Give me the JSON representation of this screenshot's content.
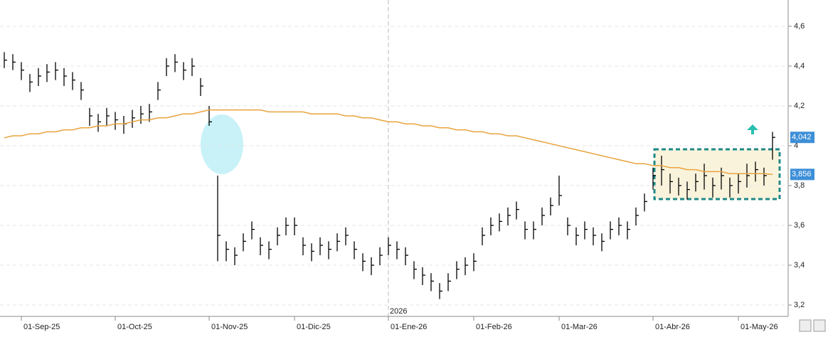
{
  "chart_data": {
    "type": "ohlc",
    "bar_color": "#000000",
    "categories": [
      null,
      null,
      "01-Sep-25",
      null,
      null,
      null,
      null,
      null,
      null,
      null,
      null,
      null,
      null,
      "01-Oct-25",
      null,
      null,
      null,
      null,
      null,
      null,
      null,
      null,
      null,
      null,
      "01-Nov-25",
      null,
      null,
      null,
      null,
      null,
      null,
      null,
      null,
      null,
      "01-Dic-25",
      null,
      null,
      null,
      null,
      null,
      null,
      null,
      null,
      null,
      null,
      "01-Ene-26",
      null,
      null,
      null,
      null,
      null,
      null,
      null,
      null,
      null,
      "01-Feb-26",
      null,
      null,
      null,
      null,
      null,
      null,
      null,
      null,
      null,
      "01-Mar-26",
      null,
      null,
      null,
      null,
      null,
      null,
      null,
      null,
      null,
      null,
      "01-Abr-26",
      null,
      null,
      null,
      null,
      null,
      null,
      null,
      null,
      null,
      "01-May-26",
      null,
      null,
      null,
      null
    ],
    "high": [
      4.47,
      4.46,
      4.42,
      4.36,
      4.39,
      4.41,
      4.42,
      4.39,
      4.37,
      4.32,
      4.19,
      4.16,
      4.19,
      4.17,
      4.15,
      4.18,
      4.2,
      4.21,
      4.32,
      4.44,
      4.46,
      4.42,
      4.44,
      4.34,
      4.2,
      3.85,
      3.52,
      3.49,
      3.56,
      3.62,
      3.54,
      3.52,
      3.59,
      3.64,
      3.64,
      3.54,
      3.51,
      3.54,
      3.52,
      3.56,
      3.59,
      3.52,
      3.46,
      3.44,
      3.49,
      3.54,
      3.52,
      3.49,
      3.42,
      3.39,
      3.36,
      3.31,
      3.36,
      3.42,
      3.44,
      3.46,
      3.59,
      3.64,
      3.66,
      3.69,
      3.72,
      3.62,
      3.62,
      3.69,
      3.74,
      3.85,
      3.64,
      3.59,
      3.62,
      3.59,
      3.56,
      3.62,
      3.64,
      3.62,
      3.69,
      3.76,
      3.89,
      3.95,
      3.86,
      3.84,
      3.82,
      3.86,
      3.91,
      3.84,
      3.89,
      3.84,
      3.86,
      3.91,
      3.92,
      3.89,
      4.07
    ],
    "low": [
      4.39,
      4.38,
      4.33,
      4.27,
      4.3,
      4.32,
      4.33,
      4.3,
      4.28,
      4.23,
      4.1,
      4.07,
      4.1,
      4.08,
      4.06,
      4.09,
      4.11,
      4.12,
      4.23,
      4.35,
      4.37,
      4.33,
      4.35,
      4.25,
      4.1,
      3.42,
      3.42,
      3.4,
      3.47,
      3.53,
      3.45,
      3.43,
      3.5,
      3.55,
      3.55,
      3.45,
      3.42,
      3.45,
      3.43,
      3.47,
      3.5,
      3.43,
      3.37,
      3.35,
      3.4,
      3.45,
      3.43,
      3.4,
      3.33,
      3.3,
      3.27,
      3.23,
      3.27,
      3.33,
      3.35,
      3.37,
      3.5,
      3.55,
      3.57,
      3.6,
      3.63,
      3.53,
      3.53,
      3.6,
      3.65,
      3.7,
      3.55,
      3.5,
      3.53,
      3.5,
      3.47,
      3.53,
      3.55,
      3.53,
      3.6,
      3.67,
      3.78,
      3.8,
      3.76,
      3.75,
      3.73,
      3.77,
      3.78,
      3.74,
      3.78,
      3.74,
      3.76,
      3.79,
      3.82,
      3.8,
      3.93
    ],
    "close": [
      4.43,
      4.42,
      4.38,
      4.32,
      4.35,
      4.37,
      4.38,
      4.35,
      4.33,
      4.28,
      4.15,
      4.12,
      4.15,
      4.13,
      4.11,
      4.14,
      4.16,
      4.17,
      4.28,
      4.4,
      4.42,
      4.38,
      4.4,
      4.3,
      4.12,
      3.55,
      3.48,
      3.45,
      3.52,
      3.58,
      3.5,
      3.48,
      3.55,
      3.6,
      3.6,
      3.5,
      3.47,
      3.5,
      3.48,
      3.52,
      3.55,
      3.48,
      3.42,
      3.4,
      3.45,
      3.5,
      3.48,
      3.45,
      3.38,
      3.35,
      3.32,
      3.27,
      3.32,
      3.38,
      3.4,
      3.42,
      3.55,
      3.6,
      3.62,
      3.65,
      3.68,
      3.58,
      3.58,
      3.65,
      3.7,
      3.75,
      3.6,
      3.55,
      3.58,
      3.55,
      3.52,
      3.58,
      3.6,
      3.58,
      3.65,
      3.72,
      3.85,
      3.88,
      3.82,
      3.8,
      3.78,
      3.82,
      3.85,
      3.8,
      3.85,
      3.8,
      3.82,
      3.85,
      3.88,
      3.85,
      4.042
    ],
    "moving_average": {
      "color": "#e8a33d",
      "values": [
        4.04,
        4.05,
        4.05,
        4.06,
        4.06,
        4.07,
        4.07,
        4.08,
        4.08,
        4.09,
        4.09,
        4.1,
        4.1,
        4.11,
        4.11,
        4.12,
        4.13,
        4.13,
        4.14,
        4.14,
        4.15,
        4.16,
        4.16,
        4.17,
        4.18,
        4.18,
        4.18,
        4.18,
        4.18,
        4.18,
        4.18,
        4.17,
        4.17,
        4.17,
        4.17,
        4.17,
        4.16,
        4.16,
        4.16,
        4.16,
        4.15,
        4.15,
        4.14,
        4.14,
        4.13,
        4.12,
        4.12,
        4.11,
        4.11,
        4.1,
        4.1,
        4.09,
        4.09,
        4.08,
        4.08,
        4.07,
        4.07,
        4.06,
        4.06,
        4.05,
        4.05,
        4.04,
        4.03,
        4.02,
        4.01,
        4.0,
        3.99,
        3.98,
        3.97,
        3.96,
        3.95,
        3.94,
        3.93,
        3.92,
        3.91,
        3.91,
        3.9,
        3.9,
        3.89,
        3.89,
        3.88,
        3.88,
        3.87,
        3.87,
        3.87,
        3.86,
        3.86,
        3.86,
        3.86,
        3.86,
        3.856
      ]
    },
    "ylim": [
      3.143,
      4.732
    ],
    "yticks": [
      {
        "value": 3.2,
        "label": "3,2"
      },
      {
        "value": 3.4,
        "label": "3,4"
      },
      {
        "value": 3.6,
        "label": "3,6"
      },
      {
        "value": 3.8,
        "label": "3,8"
      },
      {
        "value": 4,
        "label": "4"
      },
      {
        "value": 4.2,
        "label": "4,2"
      },
      {
        "value": 4.4,
        "label": "4,4"
      },
      {
        "value": 4.6,
        "label": "4,6"
      }
    ],
    "price_labels": [
      {
        "value": 4.042,
        "label": "4,042"
      },
      {
        "value": 3.856,
        "label": "3,856"
      }
    ],
    "price_label_color": "#3d8fd8",
    "year_marker": {
      "text": "2026",
      "at": "01-Ene-26"
    }
  }
}
